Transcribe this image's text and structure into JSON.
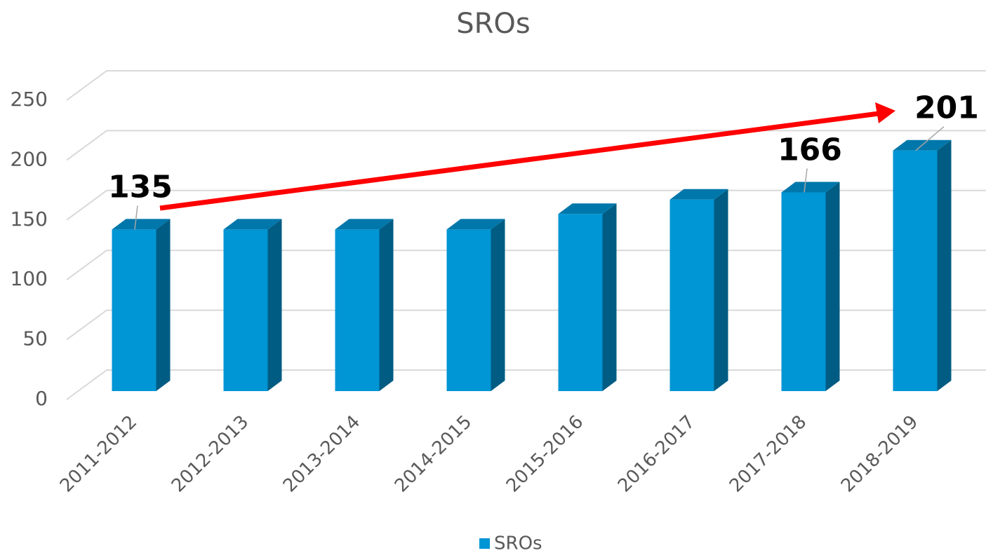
{
  "chart_data": {
    "type": "bar3d",
    "title": "SROs",
    "categories": [
      "2011-2012",
      "2012-2013",
      "2013-2014",
      "2014-2015",
      "2015-2016",
      "2016-2017",
      "2017-2018",
      "2018-2019"
    ],
    "series": [
      {
        "name": "SROs",
        "color": "#0095d4",
        "values": [
          135,
          135,
          135,
          135,
          148,
          160,
          166,
          201
        ],
        "value_labels": [
          "135",
          null,
          null,
          null,
          null,
          null,
          "166",
          "201"
        ]
      }
    ],
    "ylim": [
      0,
      250
    ],
    "yticks": [
      0,
      50,
      100,
      150,
      200,
      250
    ],
    "grid": true,
    "legend": "bottom"
  }
}
